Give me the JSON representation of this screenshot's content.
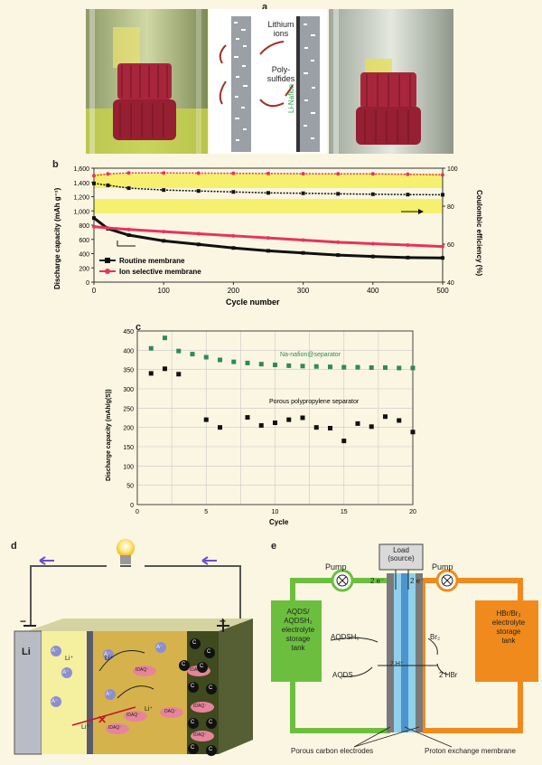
{
  "panel_a": {
    "label": "a",
    "lithium_ions": "Lithium\nions",
    "polysulfides": "Poly-\nsulfides",
    "nafion_label": "Li-Nafion"
  },
  "panel_b": {
    "label": "b",
    "ylabel_left": "Discharge capacity (mAh g⁻¹)",
    "ylabel_right": "Coulombic efficiency (%)",
    "xlabel": "Cycle number",
    "legend": [
      "Routine membrane",
      "Ion selective membrane"
    ]
  },
  "panel_c": {
    "label": "c",
    "ylabel": "Discharge capacity (mAh/g(S))",
    "xlabel": "Cycle",
    "annotation_1": "Na-nafion@separator",
    "annotation_2": "Porous polypropylene separator"
  },
  "panel_d": {
    "label": "d",
    "electrode": "Li",
    "ion_labels": [
      "Li⁺",
      "Li⁺",
      "A⁻",
      "A⁻",
      "A⁻",
      "A⁻",
      "Li⁺",
      "Li⁺",
      "A⁻",
      "A⁻",
      "IDAQ⁻",
      "IDAQ⁻",
      "IDAQ⁻",
      "DAQ⁻",
      "IDAQ⁻",
      "IDAQ⁻",
      "IDAQ⁻",
      "C",
      "C",
      "C",
      "C",
      "C",
      "C",
      "C",
      "C",
      "C",
      "C"
    ],
    "terminal_minus": "−",
    "terminal_plus": "+"
  },
  "panel_e": {
    "label": "e",
    "load": "Load\n(source)",
    "pump_left": "Pump",
    "pump_right": "Pump",
    "e_left": "2 e⁻",
    "e_right": "2 e⁻",
    "tank_left": "AQDS/\nAQDSH₂\nelectrolyte\nstorage\ntank",
    "tank_right": "HBr/Br₂\nelectrolyte\nstorage\ntank",
    "aqdsh2": "AQDSH₂",
    "aqds": "AQDS",
    "proton": "2 H⁺",
    "br2": "Br₂",
    "hbr": "2 HBr",
    "porous_carbon": "Porous carbon electrodes",
    "pem": "Proton exchange membrane"
  },
  "chart_data": [
    {
      "type": "line",
      "panel": "b",
      "xlabel": "Cycle number",
      "ylabel": "Discharge capacity (mAh g⁻¹)",
      "y2label": "Coulombic efficiency (%)",
      "xlim": [
        0,
        500
      ],
      "ylim": [
        0,
        1600
      ],
      "y2lim": [
        40,
        100
      ],
      "x_ticks": [
        0,
        100,
        200,
        300,
        400,
        500
      ],
      "y_ticks": [
        0,
        200,
        400,
        600,
        800,
        1000,
        1200,
        1400,
        1600
      ],
      "y_tick_labels": [
        "0",
        "200",
        "400",
        "600",
        "800",
        "1,000",
        "1,200",
        "1,400",
        "1,600"
      ],
      "y2_ticks": [
        40,
        60,
        80,
        100
      ],
      "x": [
        0,
        20,
        50,
        100,
        150,
        200,
        250,
        300,
        350,
        400,
        450,
        500
      ],
      "series": [
        {
          "name": "Routine membrane",
          "color": "#111111",
          "axis": "left",
          "values": [
            900,
            750,
            660,
            580,
            530,
            480,
            440,
            410,
            380,
            360,
            345,
            340
          ]
        },
        {
          "name": "Ion selective membrane",
          "color": "#e8335a",
          "axis": "left",
          "values": [
            780,
            760,
            740,
            710,
            680,
            650,
            620,
            590,
            560,
            540,
            520,
            500
          ]
        },
        {
          "name": "",
          "color": "#111111",
          "axis": "right",
          "values": [
            92,
            91,
            89.5,
            88.5,
            88,
            87.5,
            87,
            86.8,
            86.5,
            86.3,
            86.1,
            86
          ]
        },
        {
          "name": "",
          "color": "#e8335a",
          "axis": "right",
          "values": [
            96,
            97,
            97.5,
            97.5,
            97.4,
            97.3,
            97.2,
            97.1,
            97,
            97,
            96.8,
            96.5
          ]
        }
      ],
      "grid": false,
      "legend_position": "bottom-left"
    },
    {
      "type": "scatter",
      "panel": "c",
      "xlabel": "Cycle",
      "ylabel": "Discharge capacity (mAh/g(S))",
      "xlim": [
        0,
        20
      ],
      "ylim": [
        0,
        450
      ],
      "x_ticks": [
        0,
        5,
        10,
        15,
        20
      ],
      "y_ticks": [
        0,
        50,
        100,
        150,
        200,
        250,
        300,
        350,
        400,
        450
      ],
      "grid": true,
      "series": [
        {
          "name": "Na-nafion@separator",
          "color": "#2e8b57",
          "x": [
            1,
            2,
            3,
            4,
            5,
            6,
            7,
            8,
            9,
            10,
            11,
            12,
            13,
            14,
            15,
            16,
            17,
            18,
            19,
            20
          ],
          "values": [
            405,
            432,
            398,
            390,
            382,
            375,
            370,
            367,
            364,
            362,
            360,
            359,
            358,
            357,
            356,
            356,
            355,
            355,
            354,
            354
          ]
        },
        {
          "name": "Porous polypropylene separator",
          "color": "#111111",
          "x": [
            1,
            2,
            3,
            5,
            6,
            8,
            9,
            10,
            11,
            12,
            13,
            14,
            15,
            16,
            17,
            18,
            19,
            20
          ],
          "values": [
            340,
            352,
            338,
            220,
            200,
            226,
            205,
            212,
            220,
            225,
            200,
            198,
            165,
            210,
            202,
            228,
            218,
            188
          ]
        }
      ]
    }
  ]
}
